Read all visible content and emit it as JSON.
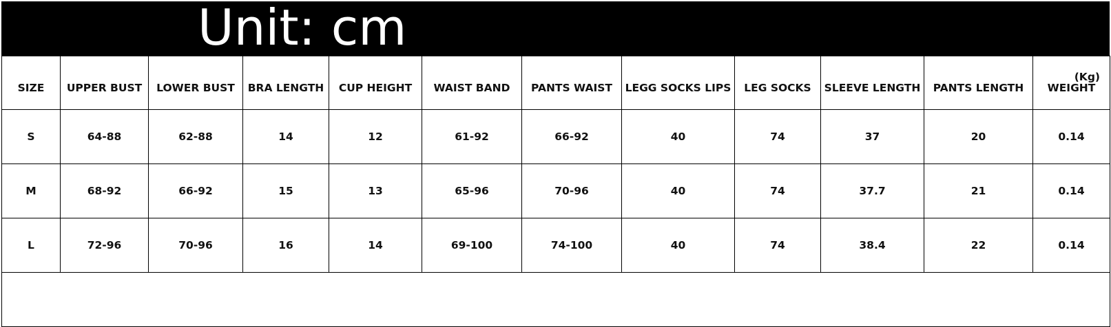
{
  "title": "Unit: cm",
  "table": {
    "headers": [
      "SIZE",
      "UPPER BUST",
      "LOWER BUST",
      "BRA LENGTH",
      "CUP HEIGHT",
      "WAIST BAND",
      "PANTS WAIST",
      "LEGG SOCKS LIPS",
      "LEG SOCKS",
      "SLEEVE LENGTH",
      "PANTS LENGTH",
      "WEIGHT"
    ],
    "weight_unit": "(Kg)",
    "rows": [
      [
        "S",
        "64-88",
        "62-88",
        "14",
        "12",
        "61-92",
        "66-92",
        "40",
        "74",
        "37",
        "20",
        "0.14"
      ],
      [
        "M",
        "68-92",
        "66-92",
        "15",
        "13",
        "65-96",
        "70-96",
        "40",
        "74",
        "37.7",
        "21",
        "0.14"
      ],
      [
        "L",
        "72-96",
        "70-96",
        "16",
        "14",
        "69-100",
        "74-100",
        "40",
        "74",
        "38.4",
        "22",
        "0.14"
      ]
    ]
  }
}
